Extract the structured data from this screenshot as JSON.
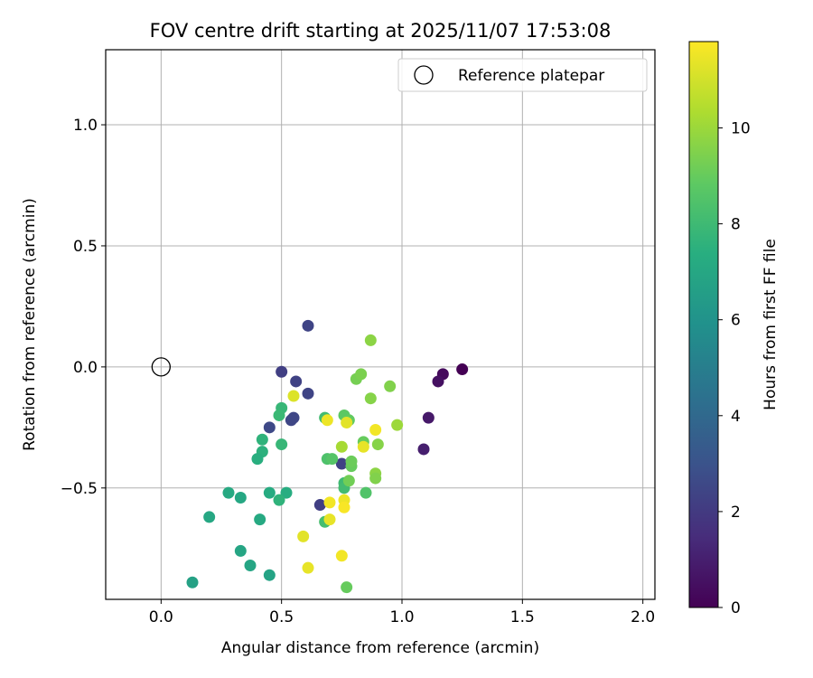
{
  "chart_data": {
    "type": "scatter",
    "title": "FOV centre drift starting at 2025/11/07 17:53:08",
    "xlabel": "Angular distance from reference (arcmin)",
    "ylabel": "Rotation from reference (arcmin)",
    "xlim": [
      -0.23,
      2.05
    ],
    "ylim": [
      -0.96,
      1.31
    ],
    "xticks": [
      0.0,
      0.5,
      1.0,
      1.5,
      2.0
    ],
    "xtick_labels": [
      "0.0",
      "0.5",
      "1.0",
      "1.5",
      "2.0"
    ],
    "yticks": [
      -0.5,
      0.0,
      0.5,
      1.0
    ],
    "ytick_labels": [
      "−0.5",
      "0.0",
      "0.5",
      "1.0"
    ],
    "grid": true,
    "legend": {
      "position": "top-right",
      "entries": [
        {
          "label": "Reference platepar",
          "marker": "open-circle"
        }
      ]
    },
    "reference_point": {
      "x": 0.0,
      "y": 0.0
    },
    "colorbar": {
      "label": "Hours from first FF file",
      "range": [
        0,
        11.8
      ],
      "ticks": [
        0,
        2,
        4,
        6,
        8,
        10
      ],
      "tick_labels": [
        "0",
        "2",
        "4",
        "6",
        "8",
        "10"
      ],
      "colormap": "viridis"
    },
    "points": [
      {
        "x": 1.25,
        "y": -0.01,
        "h": 0.0
      },
      {
        "x": 1.17,
        "y": -0.03,
        "h": 0.3
      },
      {
        "x": 1.15,
        "y": -0.06,
        "h": 0.5
      },
      {
        "x": 1.11,
        "y": -0.21,
        "h": 0.8
      },
      {
        "x": 1.09,
        "y": -0.34,
        "h": 1.0
      },
      {
        "x": 0.61,
        "y": 0.17,
        "h": 2.4
      },
      {
        "x": 0.5,
        "y": -0.02,
        "h": 2.2
      },
      {
        "x": 0.56,
        "y": -0.06,
        "h": 2.3
      },
      {
        "x": 0.61,
        "y": -0.11,
        "h": 2.4
      },
      {
        "x": 0.54,
        "y": -0.22,
        "h": 2.5
      },
      {
        "x": 0.55,
        "y": -0.21,
        "h": 2.5
      },
      {
        "x": 0.45,
        "y": -0.25,
        "h": 2.6
      },
      {
        "x": 0.75,
        "y": -0.4,
        "h": 2.3
      },
      {
        "x": 0.66,
        "y": -0.57,
        "h": 2.2
      },
      {
        "x": 0.5,
        "y": -0.17,
        "h": 7.8
      },
      {
        "x": 0.49,
        "y": -0.2,
        "h": 7.9
      },
      {
        "x": 0.5,
        "y": -0.32,
        "h": 7.8
      },
      {
        "x": 0.42,
        "y": -0.3,
        "h": 7.6
      },
      {
        "x": 0.42,
        "y": -0.35,
        "h": 7.5
      },
      {
        "x": 0.4,
        "y": -0.38,
        "h": 7.4
      },
      {
        "x": 0.28,
        "y": -0.52,
        "h": 7.1
      },
      {
        "x": 0.33,
        "y": -0.54,
        "h": 7.0
      },
      {
        "x": 0.2,
        "y": -0.62,
        "h": 7.0
      },
      {
        "x": 0.45,
        "y": -0.52,
        "h": 7.2
      },
      {
        "x": 0.52,
        "y": -0.52,
        "h": 7.3
      },
      {
        "x": 0.49,
        "y": -0.55,
        "h": 7.6
      },
      {
        "x": 0.41,
        "y": -0.63,
        "h": 7.1
      },
      {
        "x": 0.33,
        "y": -0.76,
        "h": 6.9
      },
      {
        "x": 0.37,
        "y": -0.82,
        "h": 6.9
      },
      {
        "x": 0.45,
        "y": -0.86,
        "h": 6.8
      },
      {
        "x": 0.13,
        "y": -0.89,
        "h": 6.7
      },
      {
        "x": 0.68,
        "y": -0.64,
        "h": 8.2
      },
      {
        "x": 0.68,
        "y": -0.21,
        "h": 8.1
      },
      {
        "x": 0.69,
        "y": -0.38,
        "h": 8.4
      },
      {
        "x": 0.71,
        "y": -0.38,
        "h": 8.6
      },
      {
        "x": 0.76,
        "y": -0.2,
        "h": 8.8
      },
      {
        "x": 0.78,
        "y": -0.22,
        "h": 8.9
      },
      {
        "x": 0.79,
        "y": -0.41,
        "h": 9.0
      },
      {
        "x": 0.79,
        "y": -0.39,
        "h": 9.1
      },
      {
        "x": 0.76,
        "y": -0.48,
        "h": 8.0
      },
      {
        "x": 0.76,
        "y": -0.5,
        "h": 8.1
      },
      {
        "x": 0.78,
        "y": -0.47,
        "h": 9.2
      },
      {
        "x": 0.81,
        "y": -0.05,
        "h": 9.3
      },
      {
        "x": 0.83,
        "y": -0.03,
        "h": 9.4
      },
      {
        "x": 0.84,
        "y": -0.31,
        "h": 9.0
      },
      {
        "x": 0.85,
        "y": -0.52,
        "h": 8.5
      },
      {
        "x": 0.87,
        "y": 0.11,
        "h": 9.7
      },
      {
        "x": 0.87,
        "y": -0.13,
        "h": 9.6
      },
      {
        "x": 0.89,
        "y": -0.44,
        "h": 9.7
      },
      {
        "x": 0.89,
        "y": -0.46,
        "h": 9.5
      },
      {
        "x": 0.9,
        "y": -0.32,
        "h": 9.6
      },
      {
        "x": 0.95,
        "y": -0.08,
        "h": 9.5
      },
      {
        "x": 0.98,
        "y": -0.24,
        "h": 10.0
      },
      {
        "x": 0.77,
        "y": -0.91,
        "h": 9.0
      },
      {
        "x": 0.75,
        "y": -0.33,
        "h": 10.2
      },
      {
        "x": 0.55,
        "y": -0.12,
        "h": 11.2
      },
      {
        "x": 0.69,
        "y": -0.22,
        "h": 11.5
      },
      {
        "x": 0.77,
        "y": -0.23,
        "h": 11.3
      },
      {
        "x": 0.84,
        "y": -0.33,
        "h": 11.4
      },
      {
        "x": 0.89,
        "y": -0.26,
        "h": 11.6
      },
      {
        "x": 0.7,
        "y": -0.56,
        "h": 11.6
      },
      {
        "x": 0.76,
        "y": -0.55,
        "h": 11.5
      },
      {
        "x": 0.76,
        "y": -0.58,
        "h": 11.7
      },
      {
        "x": 0.7,
        "y": -0.63,
        "h": 11.4
      },
      {
        "x": 0.59,
        "y": -0.7,
        "h": 11.3
      },
      {
        "x": 0.75,
        "y": -0.78,
        "h": 11.6
      },
      {
        "x": 0.61,
        "y": -0.83,
        "h": 11.4
      }
    ]
  }
}
